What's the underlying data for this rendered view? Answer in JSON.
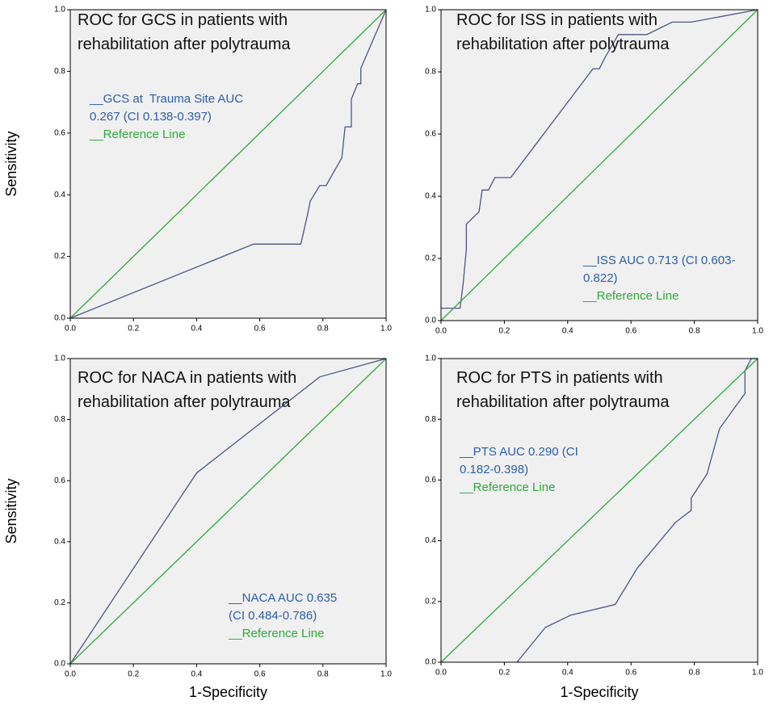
{
  "chart_data": [
    {
      "type": "line",
      "title": "ROC for GCS in patients with rehabilitation after polytrauma",
      "ylabel": "Sensitivity",
      "xlim": [
        0,
        1
      ],
      "ylim": [
        0,
        1
      ],
      "xticks": [
        {
          "value": 0,
          "label": "0.0"
        },
        0.2,
        0.4,
        0.6,
        0.8,
        {
          "value": 1,
          "label": "1.0"
        }
      ],
      "yticks": [
        {
          "value": 0,
          "label": "0.0"
        },
        0.2,
        0.4,
        0.6,
        0.8,
        {
          "value": 1,
          "label": "1.0"
        }
      ],
      "series": [
        {
          "name": "__GCS at  Trauma Site AUC 0.267 (CI 0.138-0.397)",
          "color": "#4a5688",
          "x": [
            0,
            0.58,
            0.73,
            0.75,
            0.76,
            0.79,
            0.81,
            0.86,
            0.87,
            0.89,
            0.89,
            0.91,
            0.92,
            0.92,
            1
          ],
          "values": [
            0,
            0.24,
            0.24,
            0.33,
            0.38,
            0.43,
            0.43,
            0.52,
            0.62,
            0.62,
            0.71,
            0.76,
            0.76,
            0.81,
            1
          ]
        },
        {
          "name": "__Reference Line",
          "color": "#2eaa3c",
          "x": [
            0,
            1
          ],
          "values": [
            0,
            1
          ]
        }
      ]
    },
    {
      "type": "line",
      "title": "ROC for ISS in patients with rehabilitation after polytrauma",
      "xlim": [
        0,
        1
      ],
      "ylim": [
        0,
        1
      ],
      "xticks": [
        {
          "value": 0,
          "label": "0.0"
        },
        0.2,
        0.4,
        0.6,
        0.8,
        {
          "value": 1,
          "label": "1.0"
        }
      ],
      "yticks": [
        {
          "value": 0,
          "label": "0.0"
        },
        0.2,
        0.4,
        0.6,
        0.8,
        {
          "value": 1,
          "label": "1.0"
        }
      ],
      "series": [
        {
          "name": "__ISS AUC 0.713 (CI 0.603-0.822)",
          "color": "#4a5688",
          "x": [
            0,
            0.06,
            0.07,
            0.08,
            0.08,
            0.12,
            0.13,
            0.15,
            0.17,
            0.22,
            0.48,
            0.5,
            0.52,
            0.56,
            0.65,
            0.73,
            0.79,
            1
          ],
          "values": [
            0.04,
            0.04,
            0.12,
            0.23,
            0.31,
            0.35,
            0.42,
            0.42,
            0.46,
            0.46,
            0.81,
            0.81,
            0.85,
            0.92,
            0.92,
            0.96,
            0.96,
            1
          ]
        },
        {
          "name": "__Reference Line",
          "color": "#2eaa3c",
          "x": [
            0,
            1
          ],
          "values": [
            0,
            1
          ]
        }
      ]
    },
    {
      "type": "line",
      "title": "ROC for NACA in patients with rehabilitation after polytrauma",
      "xlabel": "1-Specificity",
      "ylabel": "Sensitivity",
      "xlim": [
        0,
        1
      ],
      "ylim": [
        0,
        1
      ],
      "xticks": [
        {
          "value": 0,
          "label": "0.0"
        },
        0.2,
        0.4,
        0.6,
        0.8,
        {
          "value": 1,
          "label": "1.0"
        }
      ],
      "yticks": [
        {
          "value": 0,
          "label": "0.0"
        },
        0.2,
        0.4,
        0.6,
        0.8,
        {
          "value": 1,
          "label": "1.0"
        }
      ],
      "series": [
        {
          "name": "__NACA AUC 0.635 (CI 0.484-0.786)",
          "color": "#4a5688",
          "x": [
            0,
            0.4,
            0.79,
            1
          ],
          "values": [
            0,
            0.625,
            0.94,
            1
          ]
        },
        {
          "name": "__Reference Line",
          "color": "#2eaa3c",
          "x": [
            0,
            1
          ],
          "values": [
            0,
            1
          ]
        }
      ]
    },
    {
      "type": "line",
      "title": "ROC for PTS in patients with rehabilitation after polytrauma",
      "xlabel": "1-Specificity",
      "xlim": [
        0,
        1
      ],
      "ylim": [
        0,
        1
      ],
      "xticks": [
        {
          "value": 0,
          "label": "0.0"
        },
        0.2,
        0.4,
        0.6,
        0.8,
        {
          "value": 1,
          "label": "1.0"
        }
      ],
      "yticks": [
        {
          "value": 0,
          "label": "0.0"
        },
        0.2,
        0.4,
        0.6,
        0.8,
        {
          "value": 1,
          "label": "1.0"
        }
      ],
      "series": [
        {
          "name": "__PTS AUC 0.290 (CI 0.182-0.398)",
          "color": "#4a5688",
          "x": [
            0.24,
            0.33,
            0.41,
            0.55,
            0.62,
            0.74,
            0.79,
            0.79,
            0.84,
            0.88,
            0.96,
            0.96,
            0.98,
            1
          ],
          "values": [
            0,
            0.115,
            0.155,
            0.19,
            0.31,
            0.46,
            0.5,
            0.54,
            0.62,
            0.77,
            0.885,
            0.96,
            1,
            1
          ]
        },
        {
          "name": "__Reference Line",
          "color": "#2eaa3c",
          "x": [
            0,
            1
          ],
          "values": [
            0,
            1
          ]
        }
      ]
    }
  ]
}
